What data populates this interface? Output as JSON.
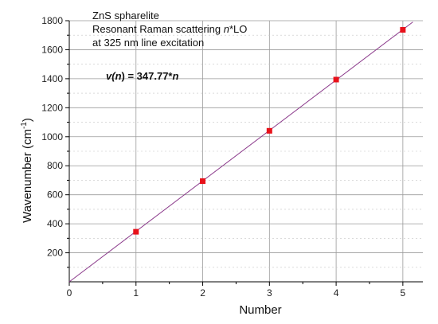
{
  "chart_data": {
    "type": "scatter",
    "xlabel": "Number",
    "ylabel": "Wavenumber (cm-1)",
    "ylabel_base": "Wavenumber (cm",
    "ylabel_sup": "-1",
    "ylabel_close": ")",
    "xlim": [
      0,
      5.3
    ],
    "ylim": [
      0,
      1800
    ],
    "x_ticks": [
      0,
      1,
      2,
      3,
      4,
      5
    ],
    "y_ticks": [
      200,
      400,
      600,
      800,
      1000,
      1200,
      1400,
      1600,
      1800
    ],
    "grid": true,
    "series": [
      {
        "values": [
          {
            "x": 1,
            "y": 345
          },
          {
            "x": 2,
            "y": 694
          },
          {
            "x": 3,
            "y": 1041
          },
          {
            "x": 4,
            "y": 1394
          },
          {
            "x": 5,
            "y": 1737
          }
        ]
      }
    ],
    "fit_line": {
      "slope": 347.77,
      "intercept": 0,
      "x_range": [
        0,
        5.15
      ]
    },
    "annotations": {
      "line1": "ZnS spharelite",
      "line2_a": "Resonant Raman scattering ",
      "line2_n": "n",
      "line2_b": "*LO",
      "line3": "at 325 nm line excitation",
      "eq_a": "v(",
      "eq_n": "n",
      "eq_b": ") = 347.77*",
      "eq_c": "n"
    },
    "colors": {
      "marker": "#e8111a",
      "line": "#8b3a8b",
      "grid": "#9a9a9a",
      "axis": "#000000"
    }
  }
}
